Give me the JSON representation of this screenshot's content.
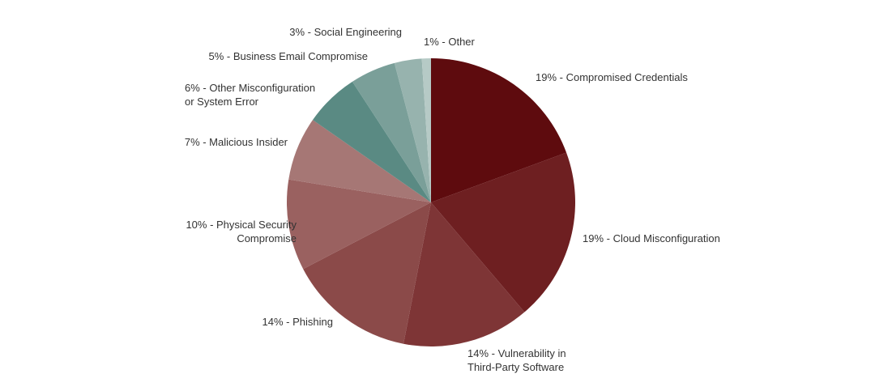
{
  "chart_data": {
    "type": "pie",
    "title": "",
    "start_angle_deg": 0,
    "direction": "clockwise",
    "slices": [
      {
        "label": "19% - Compromised Credentials",
        "value": 19,
        "color": "#5e0b0e"
      },
      {
        "label": "19% - Cloud Misconfiguration",
        "value": 19,
        "color": "#6e1f21"
      },
      {
        "label": "14% - Vulnerability in Third-Party Software",
        "value": 14,
        "color": "#7e3536"
      },
      {
        "label": "14% - Phishing",
        "value": 14,
        "color": "#8b4a49"
      },
      {
        "label": "10% - Physical Security Compromise",
        "value": 10,
        "color": "#9a6160"
      },
      {
        "label": "7% - Malicious Insider",
        "value": 7,
        "color": "#a67775"
      },
      {
        "label": "6% - Other Misconfiguration or System Error",
        "value": 6,
        "color": "#5a8a83"
      },
      {
        "label": "5% - Business Email Compromise",
        "value": 5,
        "color": "#7a9f99"
      },
      {
        "label": "3% - Social Engineering",
        "value": 3,
        "color": "#97b3ae"
      },
      {
        "label": "1% - Other",
        "value": 1,
        "color": "#b6cac6"
      }
    ]
  }
}
